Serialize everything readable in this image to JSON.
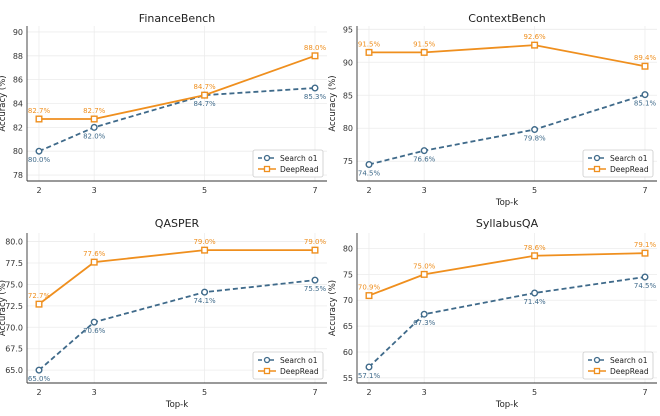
{
  "chart_data": [
    {
      "type": "line",
      "title": "FinanceBench",
      "xlabel": "",
      "ylabel": "Accuracy (%)",
      "x": [
        2,
        3,
        5,
        7
      ],
      "x_ticks": [
        "2",
        "3",
        "5",
        "7"
      ],
      "ylim": [
        77.5,
        90.5
      ],
      "y_ticks": [
        "78",
        "80",
        "82",
        "84",
        "86",
        "88",
        "90"
      ],
      "y_tick_values": [
        78,
        80,
        82,
        84,
        86,
        88,
        90
      ],
      "series": [
        {
          "name": "Search o1",
          "values": [
            80.0,
            82.0,
            84.7,
            85.3
          ],
          "labels": [
            "80.0%",
            "82.0%",
            "84.7%",
            "85.3%"
          ],
          "color": "#3f6a8a",
          "dashed": true,
          "label_pos": "below"
        },
        {
          "name": "DeepRead",
          "values": [
            82.7,
            82.7,
            84.7,
            88.0
          ],
          "labels": [
            "82.7%",
            "82.7%",
            "84.7%",
            "88.0%"
          ],
          "color": "#ef8f1e",
          "dashed": false,
          "label_pos": "above"
        }
      ],
      "legend": "bottom-right"
    },
    {
      "type": "line",
      "title": "ContextBench",
      "xlabel": "Top-k",
      "ylabel": "Accuracy (%)",
      "x": [
        2,
        3,
        5,
        7
      ],
      "x_ticks": [
        "2",
        "3",
        "5",
        "7"
      ],
      "ylim": [
        72,
        95.5
      ],
      "y_ticks": [
        "75",
        "80",
        "85",
        "90",
        "95"
      ],
      "y_tick_values": [
        75,
        80,
        85,
        90,
        95
      ],
      "series": [
        {
          "name": "Search o1",
          "values": [
            74.5,
            76.6,
            79.8,
            85.1
          ],
          "labels": [
            "74.5%",
            "76.6%",
            "79.8%",
            "85.1%"
          ],
          "color": "#3f6a8a",
          "dashed": true,
          "label_pos": "below"
        },
        {
          "name": "DeepRead",
          "values": [
            91.5,
            91.5,
            92.6,
            89.4
          ],
          "labels": [
            "91.5%",
            "91.5%",
            "92.6%",
            "89.4%"
          ],
          "color": "#ef8f1e",
          "dashed": false,
          "label_pos": "above"
        }
      ],
      "legend": "bottom-right"
    },
    {
      "type": "line",
      "title": "QASPER",
      "xlabel": "Top-k",
      "ylabel": "Accuracy (%)",
      "x": [
        2,
        3,
        5,
        7
      ],
      "x_ticks": [
        "2",
        "3",
        "5",
        "7"
      ],
      "ylim": [
        63.5,
        81
      ],
      "y_ticks": [
        "65.0",
        "67.5",
        "70.0",
        "72.5",
        "75.0",
        "77.5",
        "80.0"
      ],
      "y_tick_values": [
        65.0,
        67.5,
        70.0,
        72.5,
        75.0,
        77.5,
        80.0
      ],
      "series": [
        {
          "name": "Search o1",
          "values": [
            65.0,
            70.6,
            74.1,
            75.5
          ],
          "labels": [
            "65.0%",
            "70.6%",
            "74.1%",
            "75.5%"
          ],
          "color": "#3f6a8a",
          "dashed": true,
          "label_pos": "below"
        },
        {
          "name": "DeepRead",
          "values": [
            72.7,
            77.6,
            79.0,
            79.0
          ],
          "labels": [
            "72.7%",
            "77.6%",
            "79.0%",
            "79.0%"
          ],
          "color": "#ef8f1e",
          "dashed": false,
          "label_pos": "above"
        }
      ],
      "legend": "bottom-right"
    },
    {
      "type": "line",
      "title": "SyllabusQA",
      "xlabel": "Top-k",
      "ylabel": "Accuracy (%)",
      "x": [
        2,
        3,
        5,
        7
      ],
      "x_ticks": [
        "2",
        "3",
        "5",
        "7"
      ],
      "ylim": [
        54,
        83
      ],
      "y_ticks": [
        "55",
        "60",
        "65",
        "70",
        "75",
        "80"
      ],
      "y_tick_values": [
        55,
        60,
        65,
        70,
        75,
        80
      ],
      "series": [
        {
          "name": "Search o1",
          "values": [
            57.1,
            67.3,
            71.4,
            74.5
          ],
          "labels": [
            "57.1%",
            "67.3%",
            "71.4%",
            "74.5%"
          ],
          "color": "#3f6a8a",
          "dashed": true,
          "label_pos": "below"
        },
        {
          "name": "DeepRead",
          "values": [
            70.9,
            75.0,
            78.6,
            79.1
          ],
          "labels": [
            "70.9%",
            "75.0%",
            "78.6%",
            "79.1%"
          ],
          "color": "#ef8f1e",
          "dashed": false,
          "label_pos": "above"
        }
      ],
      "legend": "bottom-right"
    }
  ]
}
